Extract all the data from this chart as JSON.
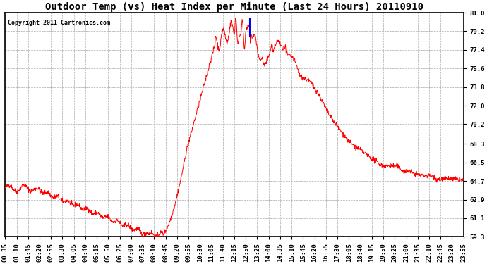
{
  "title": "Outdoor Temp (vs) Heat Index per Minute (Last 24 Hours) 20110910",
  "copyright": "Copyright 2011 Cartronics.com",
  "ymin": 59.3,
  "ymax": 81.0,
  "yticks": [
    81.0,
    79.2,
    77.4,
    75.6,
    73.8,
    72.0,
    70.2,
    68.3,
    66.5,
    64.7,
    62.9,
    61.1,
    59.3
  ],
  "xtick_labels": [
    "00:35",
    "01:10",
    "01:45",
    "02:20",
    "02:55",
    "03:30",
    "04:05",
    "04:40",
    "05:15",
    "05:50",
    "06:25",
    "07:00",
    "07:35",
    "08:10",
    "08:45",
    "09:20",
    "09:55",
    "10:30",
    "11:05",
    "11:40",
    "12:15",
    "12:50",
    "13:25",
    "14:00",
    "14:35",
    "15:10",
    "15:45",
    "16:20",
    "16:55",
    "17:30",
    "18:05",
    "18:40",
    "19:15",
    "19:50",
    "20:25",
    "21:00",
    "21:35",
    "22:10",
    "22:45",
    "23:20",
    "23:55"
  ],
  "line_color": "#ff0000",
  "blue_spike_color": "#0000ff",
  "background_color": "#ffffff",
  "grid_color": "#aaaaaa",
  "title_fontsize": 10,
  "axis_fontsize": 6.5
}
